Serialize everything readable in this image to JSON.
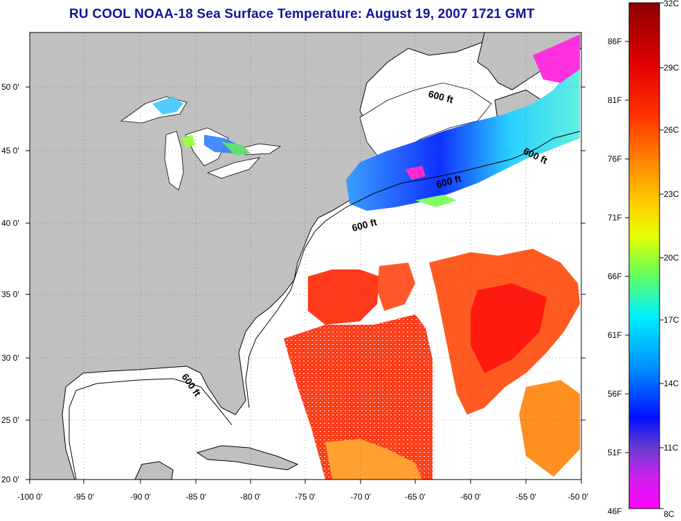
{
  "title": "RU COOL  NOAA-18  Sea Surface Temperature:  August 19, 2007 1721 GMT",
  "map": {
    "x_axis_labels": [
      "-100 0'",
      "-95 0'",
      "-90 0'",
      "-85 0'",
      "-80 0'",
      "-75 0'",
      "-70 0'",
      "-65 0'",
      "-60 0'",
      "-55 0'",
      "-50 0'"
    ],
    "y_axis_labels": [
      "50 0'",
      "45 0'",
      "40 0'",
      "35 0'",
      "30 0'",
      "25 0'",
      "20 0'"
    ],
    "contour_label": "600 ft",
    "land_color": "#c0c0c0",
    "missing_data_color": "#ffffff"
  },
  "colorbar": {
    "fahrenheit_labels": [
      "86F",
      "81F",
      "76F",
      "71F",
      "66F",
      "61F",
      "56F",
      "51F",
      "46F"
    ],
    "celsius_labels": [
      "32C",
      "29C",
      "26C",
      "23C",
      "20C",
      "17C",
      "14C",
      "11C",
      "8C"
    ],
    "gradient_stops": [
      "#8b0000",
      "#ff1a1a",
      "#ff6a00",
      "#ffb000",
      "#eaff00",
      "#66ff66",
      "#00ffff",
      "#0090ff",
      "#0000ff",
      "#8040e0",
      "#ff00ff"
    ]
  }
}
